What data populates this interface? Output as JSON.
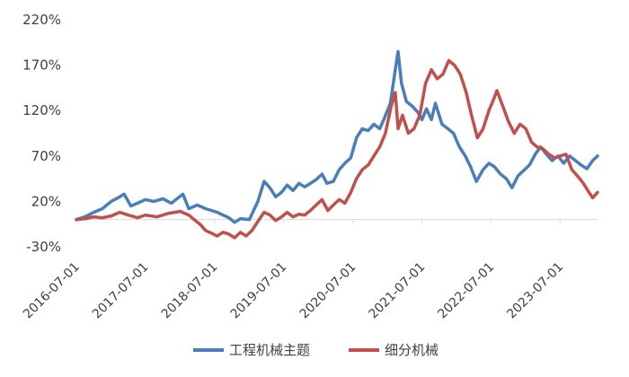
{
  "chart_data": {
    "type": "line",
    "title": "",
    "xlabel": "",
    "ylabel": "",
    "grid": false,
    "legend_position": "bottom",
    "x_ticks": [
      "2016-07-01",
      "2017-07-01",
      "2018-07-01",
      "2019-07-01",
      "2020-07-01",
      "2021-07-01",
      "2022-07-01",
      "2023-07-01"
    ],
    "y_ticks": [
      "220%",
      "170%",
      "120%",
      "70%",
      "20%",
      "-30%"
    ],
    "y_tick_values": [
      220,
      170,
      120,
      70,
      20,
      -30
    ],
    "ylim": [
      -30,
      220
    ],
    "xlim": [
      "2016-07-01",
      "2024-01-15"
    ],
    "series": [
      {
        "name": "工程机械主题",
        "color": "#4a7ebb",
        "points": [
          [
            "2016-07-01",
            0
          ],
          [
            "2016-08-15",
            3
          ],
          [
            "2016-10-01",
            8
          ],
          [
            "2016-11-15",
            12
          ],
          [
            "2017-01-01",
            20
          ],
          [
            "2017-02-15",
            25
          ],
          [
            "2017-03-10",
            28
          ],
          [
            "2017-04-15",
            15
          ],
          [
            "2017-05-20",
            18
          ],
          [
            "2017-07-01",
            22
          ],
          [
            "2017-08-15",
            20
          ],
          [
            "2017-10-01",
            23
          ],
          [
            "2017-11-15",
            18
          ],
          [
            "2018-01-15",
            28
          ],
          [
            "2018-02-15",
            12
          ],
          [
            "2018-04-01",
            16
          ],
          [
            "2018-05-15",
            12
          ],
          [
            "2018-06-15",
            10
          ],
          [
            "2018-07-15",
            8
          ],
          [
            "2018-08-15",
            5
          ],
          [
            "2018-09-15",
            2
          ],
          [
            "2018-10-15",
            -3
          ],
          [
            "2018-11-15",
            1
          ],
          [
            "2019-01-01",
            0
          ],
          [
            "2019-02-15",
            20
          ],
          [
            "2019-03-20",
            42
          ],
          [
            "2019-04-20",
            35
          ],
          [
            "2019-05-20",
            25
          ],
          [
            "2019-06-20",
            30
          ],
          [
            "2019-07-20",
            38
          ],
          [
            "2019-08-20",
            32
          ],
          [
            "2019-09-20",
            40
          ],
          [
            "2019-10-20",
            36
          ],
          [
            "2019-11-20",
            40
          ],
          [
            "2019-12-20",
            44
          ],
          [
            "2020-01-20",
            50
          ],
          [
            "2020-02-15",
            40
          ],
          [
            "2020-03-20",
            42
          ],
          [
            "2020-04-20",
            55
          ],
          [
            "2020-05-20",
            62
          ],
          [
            "2020-06-20",
            68
          ],
          [
            "2020-07-20",
            90
          ],
          [
            "2020-08-20",
            100
          ],
          [
            "2020-09-20",
            98
          ],
          [
            "2020-10-20",
            105
          ],
          [
            "2020-11-20",
            100
          ],
          [
            "2020-12-15",
            112
          ],
          [
            "2021-01-15",
            128
          ],
          [
            "2021-02-10",
            165
          ],
          [
            "2021-02-25",
            185
          ],
          [
            "2021-03-15",
            150
          ],
          [
            "2021-04-10",
            130
          ],
          [
            "2021-05-10",
            125
          ],
          [
            "2021-06-10",
            118
          ],
          [
            "2021-07-01",
            110
          ],
          [
            "2021-07-25",
            122
          ],
          [
            "2021-08-20",
            110
          ],
          [
            "2021-09-10",
            128
          ],
          [
            "2021-10-15",
            105
          ],
          [
            "2021-11-15",
            100
          ],
          [
            "2021-12-15",
            95
          ],
          [
            "2022-01-15",
            80
          ],
          [
            "2022-02-15",
            70
          ],
          [
            "2022-03-15",
            58
          ],
          [
            "2022-04-15",
            42
          ],
          [
            "2022-05-20",
            55
          ],
          [
            "2022-06-20",
            62
          ],
          [
            "2022-07-20",
            58
          ],
          [
            "2022-08-20",
            50
          ],
          [
            "2022-09-20",
            45
          ],
          [
            "2022-10-20",
            35
          ],
          [
            "2022-11-20",
            48
          ],
          [
            "2022-12-20",
            54
          ],
          [
            "2023-01-20",
            60
          ],
          [
            "2023-02-20",
            72
          ],
          [
            "2023-03-20",
            80
          ],
          [
            "2023-04-20",
            72
          ],
          [
            "2023-05-20",
            65
          ],
          [
            "2023-06-20",
            70
          ],
          [
            "2023-07-20",
            62
          ],
          [
            "2023-08-20",
            70
          ],
          [
            "2023-09-20",
            65
          ],
          [
            "2023-10-20",
            60
          ],
          [
            "2023-11-20",
            56
          ],
          [
            "2023-12-20",
            65
          ],
          [
            "2024-01-15",
            70
          ]
        ]
      },
      {
        "name": "细分机械",
        "color": "#c0504d",
        "points": [
          [
            "2016-07-01",
            0
          ],
          [
            "2016-08-15",
            1
          ],
          [
            "2016-10-01",
            3
          ],
          [
            "2016-11-15",
            2
          ],
          [
            "2017-01-01",
            4
          ],
          [
            "2017-02-15",
            8
          ],
          [
            "2017-04-01",
            5
          ],
          [
            "2017-05-20",
            2
          ],
          [
            "2017-07-01",
            5
          ],
          [
            "2017-09-01",
            3
          ],
          [
            "2017-11-01",
            7
          ],
          [
            "2018-01-01",
            9
          ],
          [
            "2018-02-15",
            5
          ],
          [
            "2018-03-15",
            0
          ],
          [
            "2018-04-15",
            -5
          ],
          [
            "2018-05-15",
            -12
          ],
          [
            "2018-06-15",
            -15
          ],
          [
            "2018-07-15",
            -18
          ],
          [
            "2018-08-15",
            -14
          ],
          [
            "2018-09-15",
            -16
          ],
          [
            "2018-10-15",
            -20
          ],
          [
            "2018-11-15",
            -14
          ],
          [
            "2018-12-15",
            -18
          ],
          [
            "2019-01-15",
            -12
          ],
          [
            "2019-02-15",
            -2
          ],
          [
            "2019-03-20",
            8
          ],
          [
            "2019-04-20",
            5
          ],
          [
            "2019-05-20",
            -1
          ],
          [
            "2019-06-20",
            3
          ],
          [
            "2019-07-20",
            8
          ],
          [
            "2019-08-20",
            3
          ],
          [
            "2019-09-20",
            6
          ],
          [
            "2019-10-20",
            5
          ],
          [
            "2019-11-20",
            10
          ],
          [
            "2019-12-20",
            16
          ],
          [
            "2020-01-20",
            22
          ],
          [
            "2020-02-20",
            10
          ],
          [
            "2020-03-20",
            16
          ],
          [
            "2020-04-20",
            22
          ],
          [
            "2020-05-20",
            18
          ],
          [
            "2020-06-20",
            30
          ],
          [
            "2020-07-20",
            45
          ],
          [
            "2020-08-20",
            55
          ],
          [
            "2020-09-20",
            60
          ],
          [
            "2020-10-20",
            70
          ],
          [
            "2020-11-20",
            80
          ],
          [
            "2020-12-20",
            95
          ],
          [
            "2021-01-20",
            125
          ],
          [
            "2021-02-10",
            140
          ],
          [
            "2021-02-25",
            100
          ],
          [
            "2021-03-20",
            115
          ],
          [
            "2021-04-20",
            95
          ],
          [
            "2021-05-20",
            100
          ],
          [
            "2021-06-20",
            115
          ],
          [
            "2021-07-20",
            150
          ],
          [
            "2021-08-20",
            165
          ],
          [
            "2021-09-20",
            155
          ],
          [
            "2021-10-20",
            160
          ],
          [
            "2021-11-20",
            175
          ],
          [
            "2021-12-20",
            170
          ],
          [
            "2022-01-20",
            160
          ],
          [
            "2022-02-20",
            140
          ],
          [
            "2022-03-20",
            115
          ],
          [
            "2022-04-20",
            90
          ],
          [
            "2022-05-20",
            100
          ],
          [
            "2022-06-20",
            120
          ],
          [
            "2022-07-20",
            135
          ],
          [
            "2022-08-01",
            142
          ],
          [
            "2022-09-01",
            125
          ],
          [
            "2022-10-01",
            108
          ],
          [
            "2022-11-01",
            95
          ],
          [
            "2022-12-01",
            105
          ],
          [
            "2023-01-01",
            100
          ],
          [
            "2023-02-01",
            85
          ],
          [
            "2023-03-01",
            80
          ],
          [
            "2023-04-01",
            78
          ],
          [
            "2023-05-01",
            72
          ],
          [
            "2023-06-01",
            68
          ],
          [
            "2023-07-01",
            70
          ],
          [
            "2023-08-01",
            72
          ],
          [
            "2023-09-01",
            55
          ],
          [
            "2023-10-01",
            48
          ],
          [
            "2023-11-01",
            40
          ],
          [
            "2023-12-01",
            30
          ],
          [
            "2023-12-20",
            24
          ],
          [
            "2024-01-15",
            30
          ]
        ]
      }
    ]
  }
}
